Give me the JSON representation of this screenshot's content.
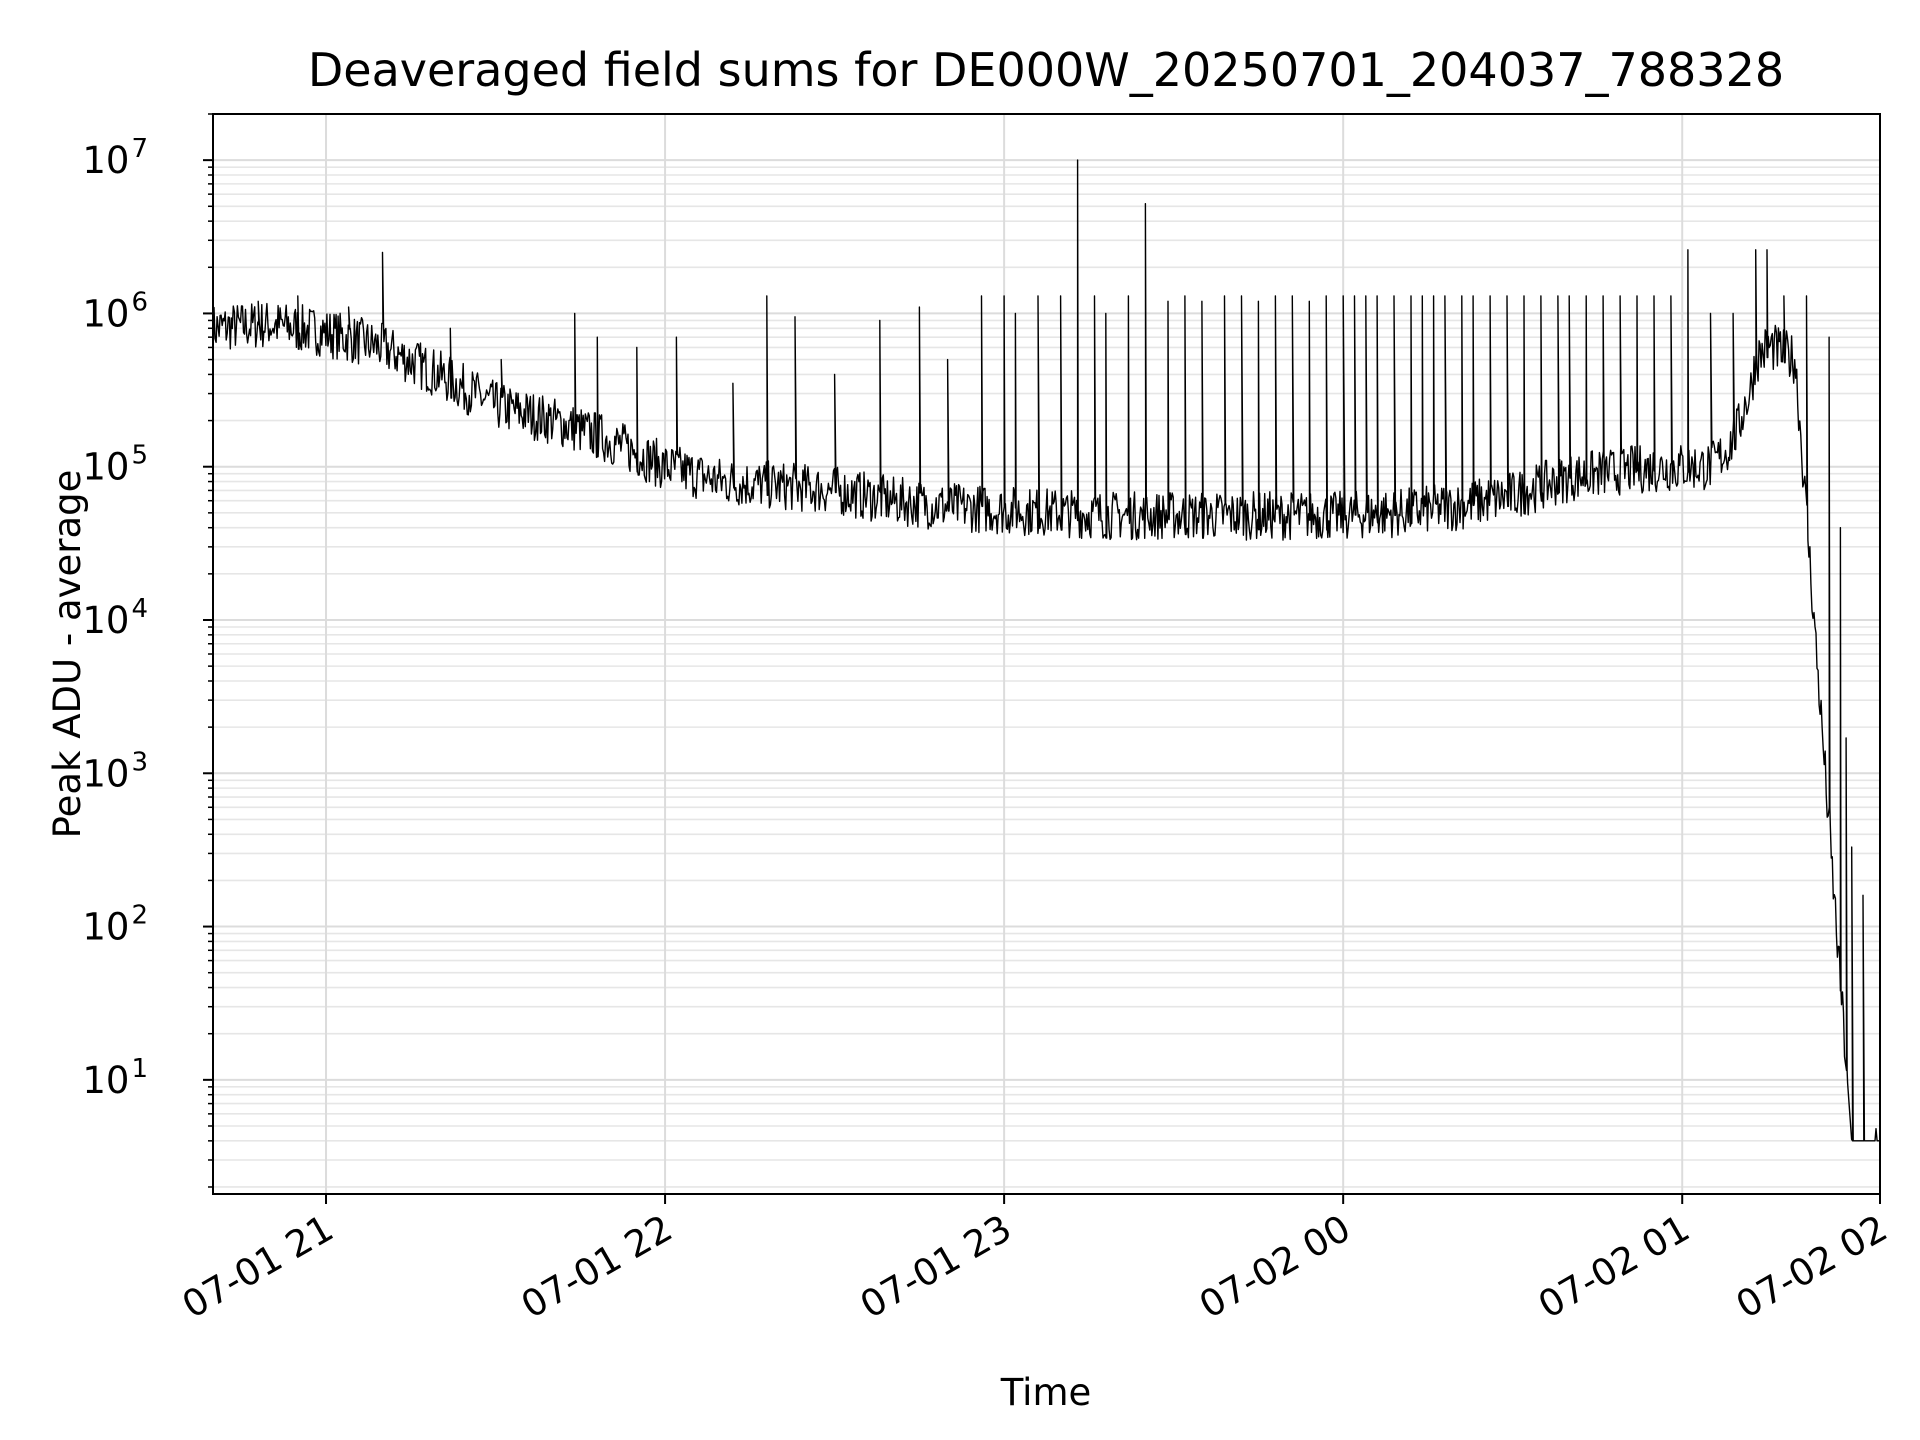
{
  "chart_data": {
    "type": "line",
    "title": "Deaveraged field sums for DE000W_20250701_204037_788328",
    "xlabel": "Time",
    "ylabel": "Peak ADU - average",
    "yscale": "log",
    "xlim": [
      "2025-07-01 20:40",
      "2025-07-02 02:15"
    ],
    "ylim": [
      1.8,
      20000000
    ],
    "grid": "major and minor",
    "x_tick_labels": [
      "07-01 21",
      "07-01 22",
      "07-01 23",
      "07-02 00",
      "07-02 01",
      "07-02 02"
    ],
    "y_tick_labels": [
      {
        "base": "10",
        "exp": "1"
      },
      {
        "base": "10",
        "exp": "2"
      },
      {
        "base": "10",
        "exp": "3"
      },
      {
        "base": "10",
        "exp": "4"
      },
      {
        "base": "10",
        "exp": "5"
      },
      {
        "base": "10",
        "exp": "6"
      },
      {
        "base": "10",
        "exp": "7"
      }
    ],
    "line_color": "#000000",
    "series": [
      {
        "baseline": {
          "time_min_from_20h": [
            40,
            50,
            60,
            70,
            80,
            90,
            100,
            110,
            120,
            130,
            140,
            150,
            160,
            170,
            180,
            190,
            200,
            210,
            220,
            230,
            240,
            250,
            260,
            270,
            280,
            290,
            300,
            305,
            308,
            310,
            311,
            312,
            313,
            315,
            316,
            320,
            330,
            335
          ],
          "values": [
            800000,
            850000,
            750000,
            600000,
            400000,
            250000,
            200000,
            150000,
            100000,
            80000,
            75000,
            70000,
            60000,
            55000,
            52000,
            50000,
            48000,
            48000,
            48000,
            48000,
            48000,
            50000,
            55000,
            65000,
            85000,
            95000,
            100000,
            100000,
            130000,
            180000,
            250000,
            300000,
            500000,
            600000,
            600000,
            500000,
            4,
            4
          ]
        },
        "spikes": {
          "time_min_from_20h": [
            48,
            55,
            64,
            70,
            82,
            91,
            104,
            108,
            115,
            122,
            132,
            138,
            143,
            150,
            158,
            165,
            170,
            176,
            180,
            182,
            186,
            190,
            193,
            196,
            198,
            202,
            205,
            209,
            212,
            215,
            219,
            222,
            225,
            228,
            231,
            234,
            237,
            240,
            242,
            244,
            246,
            249,
            252,
            254,
            256,
            258,
            261,
            263,
            266,
            269,
            272,
            275,
            278,
            280,
            283,
            286,
            289,
            292,
            295,
            298,
            301,
            305,
            309,
            313,
            315,
            318,
            322,
            326,
            328,
            329,
            330,
            331,
            332
          ],
          "values": [
            1200000,
            1300000,
            1100000,
            2500000,
            800000,
            500000,
            1000000,
            700000,
            600000,
            700000,
            350000,
            1300000,
            950000,
            400000,
            900000,
            1100000,
            500000,
            1300000,
            1300000,
            1000000,
            1300000,
            1300000,
            10000000,
            1300000,
            1000000,
            1300000,
            5200000,
            1200000,
            1300000,
            1200000,
            1300000,
            1300000,
            1200000,
            1300000,
            1300000,
            1200000,
            1300000,
            1300000,
            1300000,
            1300000,
            1300000,
            1300000,
            1300000,
            1300000,
            1300000,
            1300000,
            1300000,
            1300000,
            1300000,
            1300000,
            1300000,
            1300000,
            1300000,
            1300000,
            1300000,
            1300000,
            1300000,
            1300000,
            1300000,
            1300000,
            2600000,
            1000000,
            1000000,
            2600000,
            2600000,
            1300000,
            1300000,
            700000,
            40000,
            1700,
            330,
            4,
            160
          ]
        }
      }
    ]
  }
}
